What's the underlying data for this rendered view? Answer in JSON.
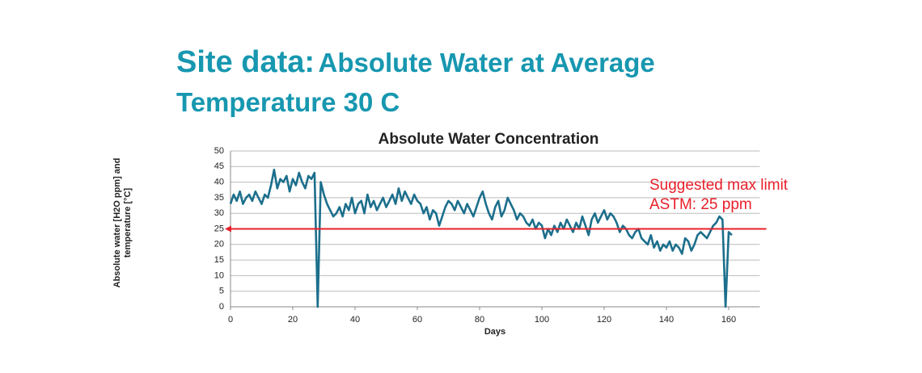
{
  "slide": {
    "title_lead": "Site data:",
    "title_rest": "Absolute Water at Average Temperature 30 C"
  },
  "chart_data": {
    "type": "line",
    "title": "Absolute Water Concentration",
    "x_label": "Days",
    "y_label": "Absolute water [H2O ppm] and temperature [°C]",
    "xlim": [
      0,
      170
    ],
    "xticks": [
      0,
      20,
      40,
      60,
      80,
      100,
      120,
      140,
      160
    ],
    "ylim": [
      0,
      50
    ],
    "yticks": [
      0,
      5,
      10,
      15,
      20,
      25,
      30,
      35,
      40,
      45,
      50
    ],
    "grid": true,
    "series": [
      {
        "color": "#1c6f8c",
        "x": [
          0,
          1,
          2,
          3,
          4,
          5,
          6,
          7,
          8,
          9,
          10,
          11,
          12,
          13,
          14,
          15,
          16,
          17,
          18,
          19,
          20,
          21,
          22,
          23,
          24,
          25,
          26,
          27,
          28,
          29,
          30,
          31,
          32,
          33,
          34,
          35,
          36,
          37,
          38,
          39,
          40,
          41,
          42,
          43,
          44,
          45,
          46,
          47,
          48,
          49,
          50,
          51,
          52,
          53,
          54,
          55,
          56,
          57,
          58,
          59,
          60,
          61,
          62,
          63,
          64,
          65,
          66,
          67,
          68,
          69,
          70,
          71,
          72,
          73,
          74,
          75,
          76,
          77,
          78,
          79,
          80,
          81,
          82,
          83,
          84,
          85,
          86,
          87,
          88,
          89,
          90,
          91,
          92,
          93,
          94,
          95,
          96,
          97,
          98,
          99,
          100,
          101,
          102,
          103,
          104,
          105,
          106,
          107,
          108,
          109,
          110,
          111,
          112,
          113,
          114,
          115,
          116,
          117,
          118,
          119,
          120,
          121,
          122,
          123,
          124,
          125,
          126,
          127,
          128,
          129,
          130,
          131,
          132,
          133,
          134,
          135,
          136,
          137,
          138,
          139,
          140,
          141,
          142,
          143,
          144,
          145,
          146,
          147,
          148,
          149,
          150,
          151,
          152,
          153,
          154,
          155,
          156,
          157,
          158,
          159,
          160,
          161
        ],
        "values": [
          33,
          36,
          34,
          37,
          33,
          35,
          36,
          34,
          37,
          35,
          33,
          36,
          35,
          39,
          44,
          38,
          41,
          40,
          42,
          37,
          41,
          39,
          43,
          40,
          38,
          42,
          41,
          43,
          0,
          40,
          36,
          33,
          31,
          29,
          30,
          32,
          29,
          33,
          31,
          35,
          30,
          33,
          34,
          30,
          36,
          32,
          34,
          31,
          33,
          35,
          32,
          34,
          36,
          33,
          38,
          34,
          37,
          35,
          33,
          36,
          34,
          33,
          30,
          32,
          28,
          31,
          30,
          26,
          29,
          32,
          34,
          33,
          31,
          34,
          32,
          30,
          33,
          31,
          29,
          32,
          35,
          37,
          33,
          30,
          28,
          32,
          34,
          29,
          31,
          35,
          33,
          31,
          28,
          30,
          29,
          27,
          26,
          28,
          25,
          27,
          26,
          22,
          25,
          23,
          26,
          24,
          27,
          25,
          28,
          26,
          24,
          27,
          25,
          29,
          26,
          23,
          28,
          30,
          27,
          29,
          31,
          28,
          30,
          29,
          27,
          24,
          26,
          25,
          23,
          22,
          24,
          25,
          22,
          21,
          20,
          23,
          19,
          21,
          18,
          20,
          19,
          21,
          18,
          20,
          19,
          17,
          22,
          21,
          18,
          20,
          23,
          24,
          23,
          22,
          24,
          26,
          27,
          29,
          28,
          0,
          24,
          23
        ]
      }
    ],
    "reference_line": {
      "value": 25,
      "color": "#e8202a",
      "label": "Suggested max limit ASTM: 25 ppm"
    }
  }
}
